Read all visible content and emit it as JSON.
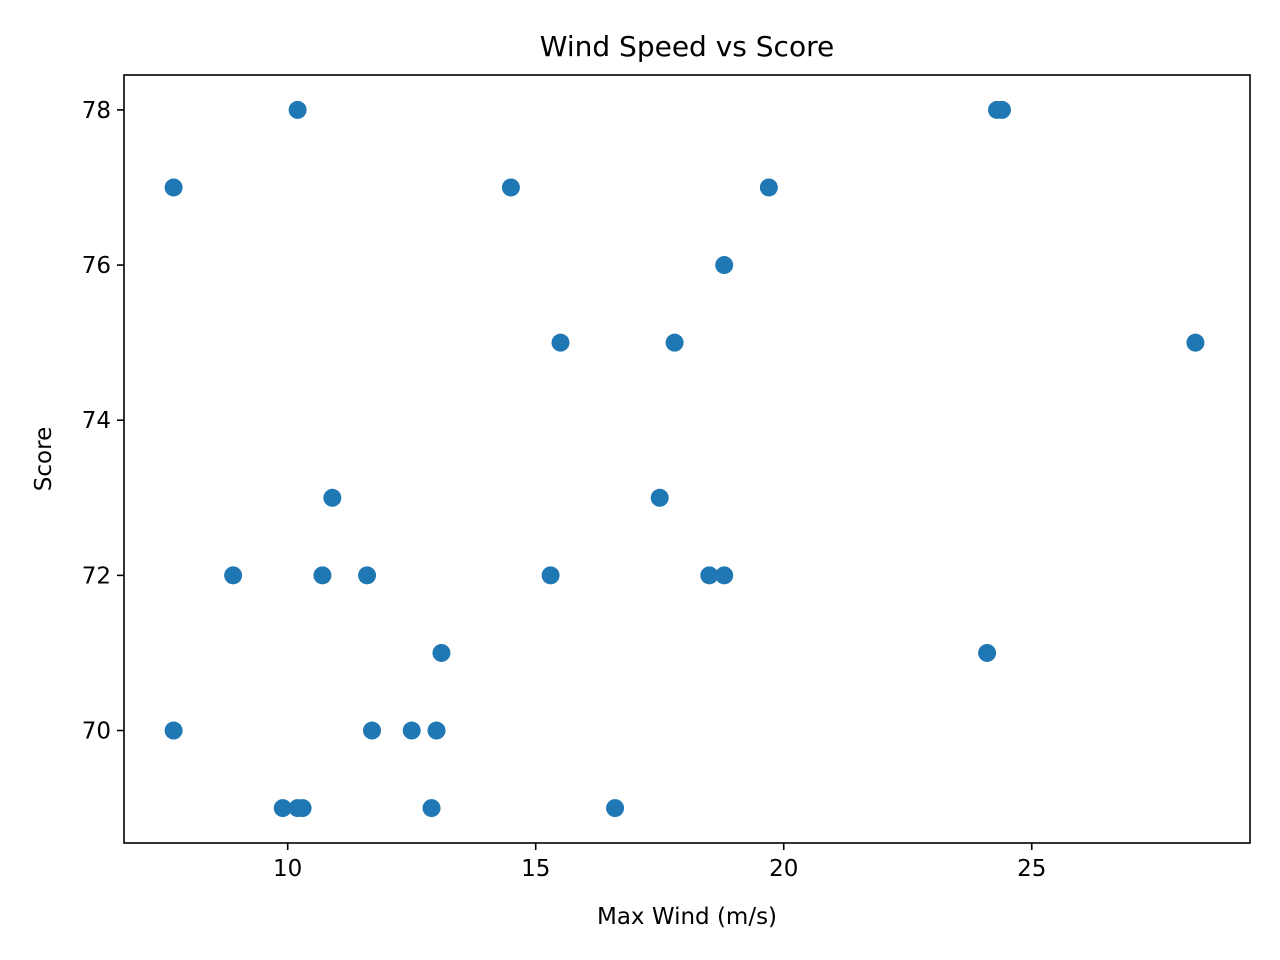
{
  "chart_data": {
    "type": "scatter",
    "title": "Wind Speed vs Score",
    "xlabel": "Max Wind (m/s)",
    "ylabel": "Score",
    "xlim": [
      6.7,
      29.4
    ],
    "ylim": [
      68.55,
      78.45
    ],
    "xticks": [
      10,
      15,
      20,
      25
    ],
    "yticks": [
      70,
      72,
      74,
      76,
      78
    ],
    "xtick_labels": [
      "10",
      "15",
      "20",
      "25"
    ],
    "ytick_labels": [
      "70",
      "72",
      "74",
      "76",
      "78"
    ],
    "grid": false,
    "marker_color": "#1f77b4",
    "points": [
      {
        "x": 7.7,
        "y": 77
      },
      {
        "x": 7.7,
        "y": 70
      },
      {
        "x": 8.9,
        "y": 72
      },
      {
        "x": 9.9,
        "y": 69
      },
      {
        "x": 10.2,
        "y": 69
      },
      {
        "x": 10.3,
        "y": 69
      },
      {
        "x": 10.2,
        "y": 78
      },
      {
        "x": 10.7,
        "y": 72
      },
      {
        "x": 10.9,
        "y": 73
      },
      {
        "x": 11.6,
        "y": 72
      },
      {
        "x": 11.7,
        "y": 70
      },
      {
        "x": 12.5,
        "y": 70
      },
      {
        "x": 12.9,
        "y": 69
      },
      {
        "x": 13.0,
        "y": 70
      },
      {
        "x": 13.1,
        "y": 71
      },
      {
        "x": 14.5,
        "y": 77
      },
      {
        "x": 15.3,
        "y": 72
      },
      {
        "x": 15.5,
        "y": 75
      },
      {
        "x": 16.6,
        "y": 69
      },
      {
        "x": 17.5,
        "y": 73
      },
      {
        "x": 17.8,
        "y": 75
      },
      {
        "x": 18.5,
        "y": 72
      },
      {
        "x": 18.8,
        "y": 72
      },
      {
        "x": 18.8,
        "y": 76
      },
      {
        "x": 19.7,
        "y": 77
      },
      {
        "x": 24.1,
        "y": 71
      },
      {
        "x": 24.3,
        "y": 78
      },
      {
        "x": 24.4,
        "y": 78
      },
      {
        "x": 28.3,
        "y": 75
      }
    ]
  }
}
